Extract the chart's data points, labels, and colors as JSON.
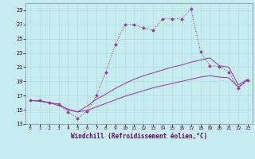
{
  "xlabel": "Windchill (Refroidissement éolien,°C)",
  "background_color": "#c5ecee",
  "grid_color": "#aadddd",
  "line_color": "#993399",
  "xlim": [
    -0.5,
    23.5
  ],
  "ylim": [
    13,
    30
  ],
  "yticks": [
    13,
    15,
    17,
    19,
    21,
    23,
    25,
    27,
    29
  ],
  "xticks": [
    0,
    1,
    2,
    3,
    4,
    5,
    6,
    7,
    8,
    9,
    10,
    11,
    12,
    13,
    14,
    15,
    16,
    17,
    18,
    19,
    20,
    21,
    22,
    23
  ],
  "series1_x": [
    0,
    1,
    2,
    3,
    4,
    5,
    6,
    7,
    8,
    9,
    10,
    11,
    12,
    13,
    14,
    15,
    16,
    17,
    18,
    19,
    20,
    21,
    22,
    23
  ],
  "series1_y": [
    16.3,
    16.3,
    16.0,
    15.8,
    14.7,
    13.8,
    14.8,
    17.0,
    20.3,
    24.2,
    27.0,
    27.0,
    26.5,
    26.2,
    27.8,
    27.8,
    27.8,
    29.2,
    23.2,
    21.2,
    21.1,
    20.3,
    18.0,
    19.2
  ],
  "series2_x": [
    0,
    1,
    2,
    3,
    4,
    5,
    6,
    7,
    8,
    9,
    10,
    11,
    12,
    13,
    14,
    15,
    16,
    17,
    18,
    19,
    20,
    21,
    22,
    23
  ],
  "series2_y": [
    16.3,
    16.3,
    16.0,
    15.8,
    15.0,
    14.7,
    15.5,
    16.5,
    17.2,
    18.0,
    18.7,
    19.3,
    19.8,
    20.2,
    20.6,
    21.0,
    21.3,
    21.7,
    22.0,
    22.3,
    21.2,
    21.0,
    18.5,
    19.3
  ],
  "series3_x": [
    0,
    1,
    2,
    3,
    4,
    5,
    6,
    7,
    8,
    9,
    10,
    11,
    12,
    13,
    14,
    15,
    16,
    17,
    18,
    19,
    20,
    21,
    22,
    23
  ],
  "series3_y": [
    16.3,
    16.2,
    16.0,
    15.6,
    15.1,
    14.7,
    14.9,
    15.4,
    15.9,
    16.4,
    16.9,
    17.3,
    17.7,
    18.1,
    18.4,
    18.7,
    19.0,
    19.3,
    19.6,
    19.8,
    19.6,
    19.5,
    18.2,
    19.2
  ]
}
